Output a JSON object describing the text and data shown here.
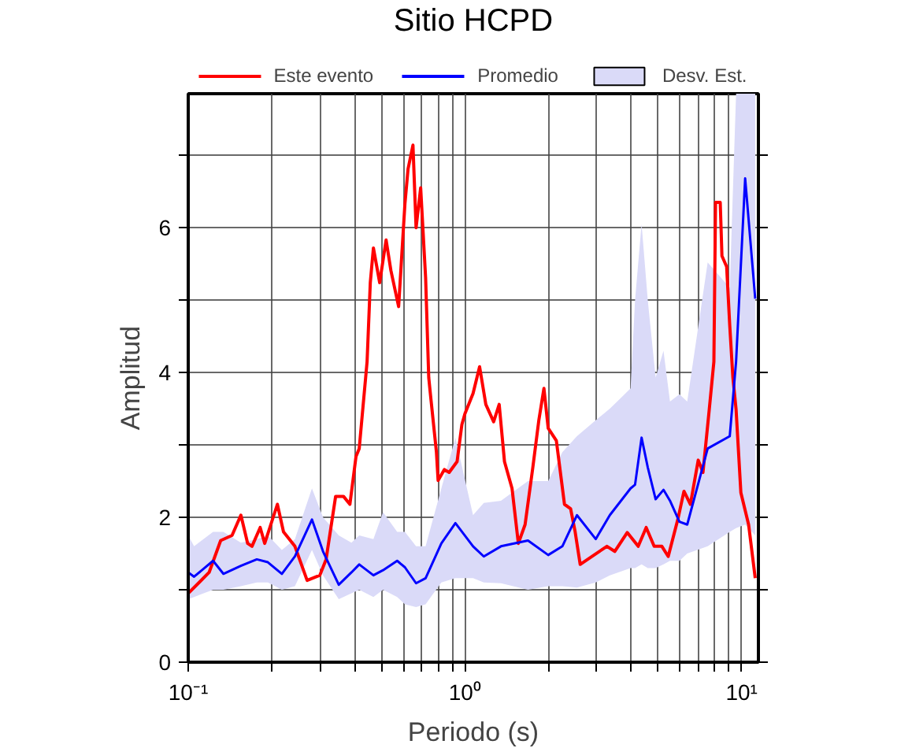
{
  "chart_data": {
    "type": "line",
    "title": "Sitio HCPD",
    "xlabel": "Periodo (s)",
    "ylabel": "Amplitud",
    "log": "x",
    "grid": true,
    "legend": "top",
    "marker": "none",
    "line_style": "solid",
    "legend_title": null,
    "xlim": [
      0.1,
      11.5
    ],
    "ylim": [
      0,
      7.85
    ],
    "xticks": [
      {
        "value": 0.1,
        "label": "10⁻¹"
      },
      {
        "value": 0.2,
        "label": null
      },
      {
        "value": 0.3,
        "label": null
      },
      {
        "value": 0.4,
        "label": null
      },
      {
        "value": 0.5,
        "label": null
      },
      {
        "value": 0.6,
        "label": null
      },
      {
        "value": 0.7,
        "label": null
      },
      {
        "value": 0.8,
        "label": null
      },
      {
        "value": 0.9,
        "label": null
      },
      {
        "value": 1,
        "label": "10⁰"
      },
      {
        "value": 2,
        "label": null
      },
      {
        "value": 3,
        "label": null
      },
      {
        "value": 4,
        "label": null
      },
      {
        "value": 5,
        "label": null
      },
      {
        "value": 6,
        "label": null
      },
      {
        "value": 7,
        "label": null
      },
      {
        "value": 8,
        "label": null
      },
      {
        "value": 9,
        "label": null
      },
      {
        "value": 10,
        "label": "10¹"
      }
    ],
    "yticks": [
      0,
      {
        "value": 1,
        "label": null
      },
      2,
      {
        "value": 3,
        "label": null
      },
      4,
      {
        "value": 5,
        "label": null
      },
      6,
      {
        "value": 7,
        "label": null
      }
    ],
    "series": [
      {
        "name": "Este evento",
        "color": "#ff0000",
        "x": [
          0.1,
          0.119,
          0.131,
          0.144,
          0.155,
          0.164,
          0.17,
          0.182,
          0.189,
          0.21,
          0.221,
          0.243,
          0.269,
          0.299,
          0.315,
          0.341,
          0.364,
          0.384,
          0.404,
          0.415,
          0.443,
          0.455,
          0.467,
          0.492,
          0.519,
          0.54,
          0.576,
          0.607,
          0.623,
          0.649,
          0.666,
          0.692,
          0.721,
          0.74,
          0.75,
          0.789,
          0.8,
          0.843,
          0.877,
          0.937,
          0.975,
          1.0,
          1.07,
          1.13,
          1.19,
          1.27,
          1.33,
          1.39,
          1.48,
          1.56,
          1.65,
          1.76,
          1.85,
          1.93,
          2.0,
          2.14,
          2.29,
          2.41,
          2.5,
          2.61,
          2.93,
          3.26,
          3.48,
          3.86,
          4.23,
          4.52,
          4.83,
          5.15,
          5.43,
          5.88,
          6.19,
          6.53,
          6.97,
          7.25,
          7.64,
          7.94,
          8.05,
          8.37,
          8.49,
          8.83,
          9.06,
          9.3,
          9.55,
          9.94,
          10.6,
          11.2
        ],
        "values": [
          0.95,
          1.24,
          1.68,
          1.75,
          2.03,
          1.64,
          1.6,
          1.86,
          1.64,
          2.18,
          1.8,
          1.6,
          1.13,
          1.2,
          1.42,
          2.29,
          2.29,
          2.18,
          2.84,
          2.95,
          4.15,
          5.24,
          5.72,
          5.24,
          5.83,
          5.41,
          4.91,
          6.33,
          6.81,
          7.14,
          6.0,
          6.55,
          5.31,
          3.93,
          3.71,
          2.9,
          2.51,
          2.66,
          2.62,
          2.77,
          3.28,
          3.43,
          3.71,
          4.08,
          3.56,
          3.32,
          3.56,
          2.77,
          2.4,
          1.64,
          1.9,
          2.69,
          3.34,
          3.78,
          3.23,
          3.06,
          2.18,
          2.12,
          1.81,
          1.35,
          1.48,
          1.6,
          1.53,
          1.79,
          1.6,
          1.86,
          1.6,
          1.6,
          1.46,
          1.97,
          2.36,
          2.18,
          2.79,
          2.62,
          3.49,
          4.15,
          6.35,
          6.35,
          5.61,
          5.46,
          4.65,
          3.93,
          3.49,
          2.34,
          1.9,
          1.16
        ]
      },
      {
        "name": "Promedio",
        "color": "#0000ff",
        "x": [
          0.1,
          0.105,
          0.123,
          0.134,
          0.155,
          0.177,
          0.194,
          0.218,
          0.243,
          0.28,
          0.307,
          0.35,
          0.389,
          0.415,
          0.467,
          0.506,
          0.569,
          0.607,
          0.666,
          0.721,
          0.822,
          0.924,
          1.07,
          1.17,
          1.35,
          1.69,
          2.0,
          2.25,
          2.54,
          2.97,
          3.34,
          3.97,
          4.12,
          4.35,
          4.58,
          4.89,
          5.22,
          5.51,
          5.96,
          6.36,
          7.54,
          9.06,
          9.55,
          10.3,
          11.2
        ],
        "values": [
          1.24,
          1.18,
          1.4,
          1.22,
          1.33,
          1.42,
          1.38,
          1.22,
          1.46,
          1.97,
          1.53,
          1.07,
          1.24,
          1.35,
          1.2,
          1.27,
          1.4,
          1.31,
          1.09,
          1.16,
          1.64,
          1.92,
          1.6,
          1.46,
          1.6,
          1.68,
          1.48,
          1.6,
          2.03,
          1.7,
          2.03,
          2.4,
          2.45,
          3.1,
          2.69,
          2.25,
          2.38,
          2.23,
          1.94,
          1.9,
          2.95,
          3.12,
          4.15,
          6.68,
          5.02
        ]
      },
      {
        "name": "Desv. Est.",
        "type": "area",
        "color": "#dadaf8",
        "values": [
          null,
          null,
          null,
          null,
          null,
          null,
          null,
          null,
          null,
          null,
          null,
          null,
          null,
          null,
          null,
          null,
          null,
          null,
          null,
          null,
          null,
          null,
          null,
          null,
          null,
          null,
          null,
          null,
          null,
          null,
          null,
          null,
          null,
          null,
          null,
          null,
          null,
          null,
          null,
          null,
          null,
          null,
          null,
          null,
          null
        ],
        "x": [
          0.1,
          0.105,
          0.123,
          0.134,
          0.155,
          0.177,
          0.194,
          0.218,
          0.243,
          0.28,
          0.307,
          0.35,
          0.389,
          0.415,
          0.467,
          0.506,
          0.569,
          0.607,
          0.666,
          0.721,
          0.822,
          0.924,
          1.07,
          1.17,
          1.35,
          1.69,
          2.0,
          2.25,
          2.54,
          2.97,
          3.34,
          3.97,
          4.12,
          4.35,
          4.58,
          4.89,
          5.22,
          5.51,
          5.96,
          6.36,
          7.54,
          9.06,
          9.55,
          10.3,
          11.2
        ],
        "lower": [
          0.87,
          0.9,
          1.0,
          1.0,
          1.05,
          1.1,
          1.1,
          1.0,
          1.05,
          1.55,
          1.2,
          0.87,
          0.95,
          1.0,
          0.9,
          1.0,
          0.9,
          0.8,
          0.76,
          0.8,
          1.1,
          1.16,
          1.16,
          1.1,
          1.09,
          1.0,
          1.05,
          1.05,
          1.03,
          1.1,
          1.2,
          1.3,
          1.3,
          1.35,
          1.3,
          1.3,
          1.35,
          1.4,
          1.4,
          1.5,
          1.6,
          1.8,
          1.85,
          1.9,
          1.75
        ],
        "upper": [
          1.75,
          1.6,
          1.8,
          1.8,
          1.65,
          1.7,
          1.75,
          1.55,
          1.7,
          2.4,
          2.0,
          1.75,
          1.65,
          1.75,
          1.7,
          2.07,
          1.8,
          1.8,
          1.6,
          1.6,
          2.4,
          3.1,
          2.03,
          2.2,
          2.23,
          2.5,
          2.5,
          2.9,
          3.12,
          3.34,
          3.5,
          3.78,
          5.0,
          6.05,
          5.0,
          3.93,
          4.3,
          3.6,
          3.7,
          3.6,
          5.52,
          5.17,
          7.85,
          7.85,
          7.85
        ]
      }
    ]
  }
}
